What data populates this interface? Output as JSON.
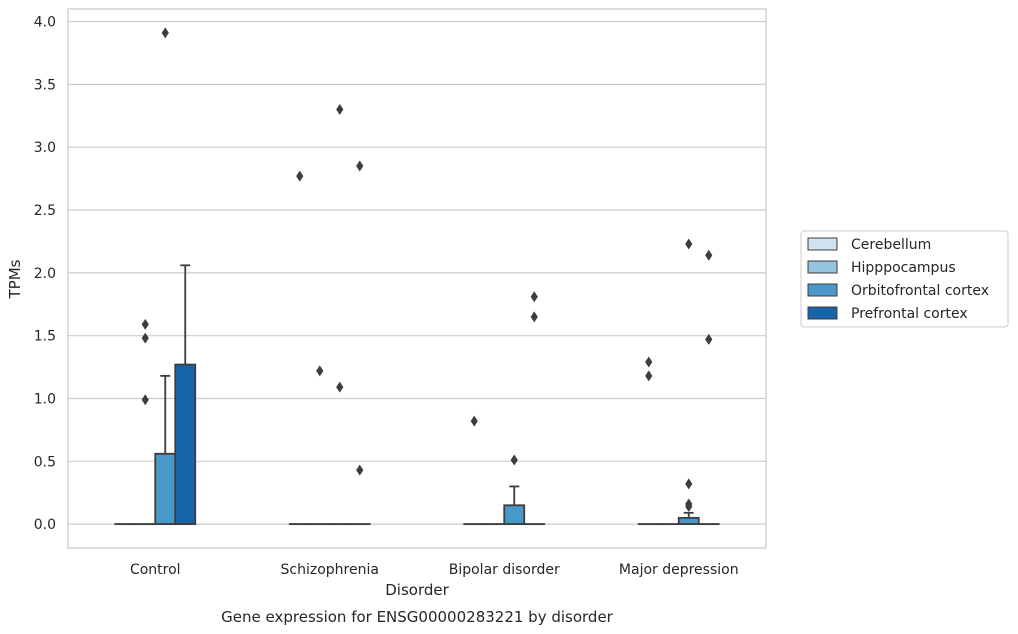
{
  "chart_data": {
    "type": "box",
    "xlabel": "Disorder",
    "ylabel": "TPMs",
    "caption": "Gene expression for ENSG00000283221 by disorder",
    "categories": [
      "Control",
      "Schizophrenia",
      "Bipolar disorder",
      "Major depression"
    ],
    "ylim": [
      -0.19,
      4.1
    ],
    "yticks": [
      "0.0",
      "0.5",
      "1.0",
      "1.5",
      "2.0",
      "2.5",
      "3.0",
      "3.5",
      "4.0"
    ],
    "grid": true,
    "legend_position": "right",
    "series": [
      {
        "name": "Cerebellum",
        "color": "#d0e1f2",
        "boxes": [
          {
            "q1": 0,
            "median": 0,
            "q3": 0,
            "whisker_low": 0,
            "whisker_high": 0,
            "outliers": []
          },
          {
            "q1": 0,
            "median": 0,
            "q3": 0,
            "whisker_low": 0,
            "whisker_high": 0,
            "outliers": [
              2.77
            ]
          },
          {
            "q1": 0,
            "median": 0,
            "q3": 0,
            "whisker_low": 0,
            "whisker_high": 0,
            "outliers": [
              0.82
            ]
          },
          {
            "q1": 0,
            "median": 0,
            "q3": 0,
            "whisker_low": 0,
            "whisker_high": 0,
            "outliers": [
              1.29,
              1.18
            ]
          }
        ]
      },
      {
        "name": "Hipppocampus",
        "color": "#94c4df",
        "boxes": [
          {
            "q1": 0,
            "median": 0,
            "q3": 0,
            "whisker_low": 0,
            "whisker_high": 0,
            "outliers": [
              1.59,
              1.48,
              0.99
            ]
          },
          {
            "q1": 0,
            "median": 0,
            "q3": 0,
            "whisker_low": 0,
            "whisker_high": 0,
            "outliers": [
              1.22
            ]
          },
          {
            "q1": 0,
            "median": 0,
            "q3": 0,
            "whisker_low": 0,
            "whisker_high": 0,
            "outliers": []
          },
          {
            "q1": 0,
            "median": 0,
            "q3": 0,
            "whisker_low": 0,
            "whisker_high": 0,
            "outliers": []
          }
        ]
      },
      {
        "name": "Orbitofrontal cortex",
        "color": "#4a98c9",
        "boxes": [
          {
            "q1": 0,
            "median": 0,
            "q3": 0.56,
            "whisker_low": 0,
            "whisker_high": 1.18,
            "outliers": [
              3.91
            ]
          },
          {
            "q1": 0,
            "median": 0,
            "q3": 0,
            "whisker_low": 0,
            "whisker_high": 0,
            "outliers": [
              3.3,
              1.09
            ]
          },
          {
            "q1": 0,
            "median": 0,
            "q3": 0.15,
            "whisker_low": 0,
            "whisker_high": 0.3,
            "outliers": [
              0.51
            ]
          },
          {
            "q1": 0,
            "median": 0,
            "q3": 0.05,
            "whisker_low": 0,
            "whisker_high": 0.09,
            "outliers": [
              2.23,
              0.32,
              0.16,
              0.14
            ]
          }
        ]
      },
      {
        "name": "Prefrontal cortex",
        "color": "#1764ab",
        "boxes": [
          {
            "q1": 0,
            "median": 0,
            "q3": 1.27,
            "whisker_low": 0,
            "whisker_high": 2.06,
            "outliers": []
          },
          {
            "q1": 0,
            "median": 0,
            "q3": 0,
            "whisker_low": 0,
            "whisker_high": 0,
            "outliers": [
              2.85,
              0.43
            ]
          },
          {
            "q1": 0,
            "median": 0,
            "q3": 0,
            "whisker_low": 0,
            "whisker_high": 0,
            "outliers": [
              1.81,
              1.65
            ]
          },
          {
            "q1": 0,
            "median": 0,
            "q3": 0,
            "whisker_low": 0,
            "whisker_high": 0,
            "outliers": [
              2.14,
              1.47
            ]
          }
        ]
      }
    ]
  }
}
